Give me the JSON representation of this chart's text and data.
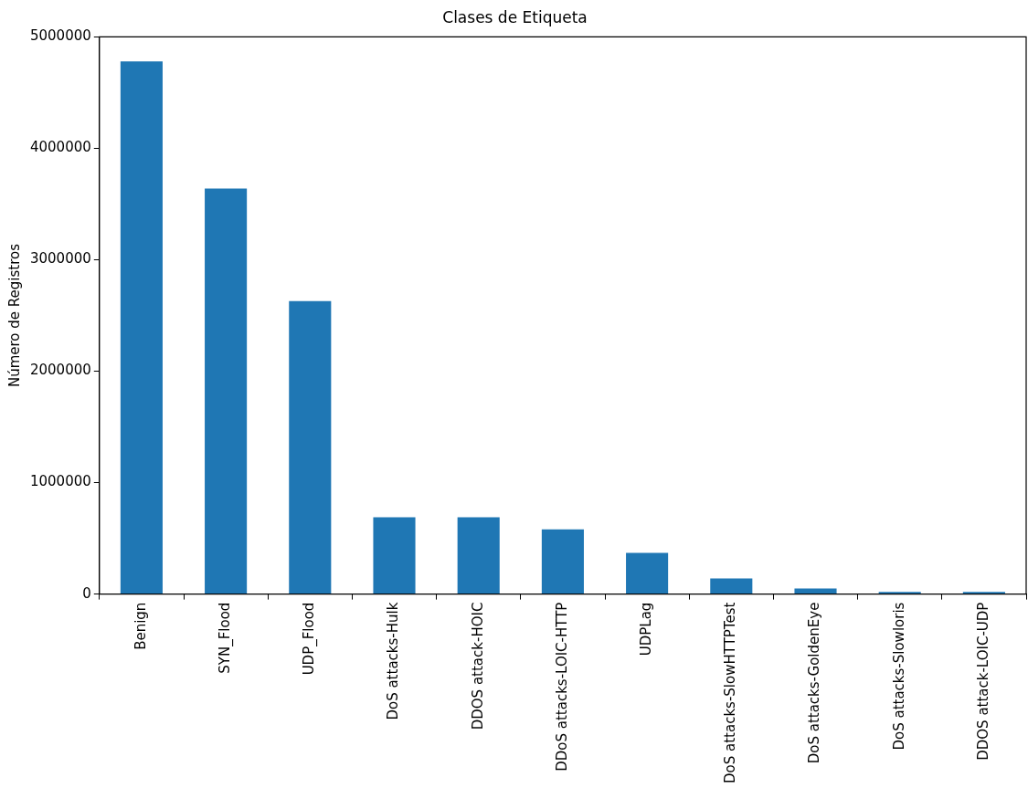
{
  "chart_data": {
    "type": "bar",
    "title": "Clases de Etiqueta",
    "ylabel": "Número de Registros",
    "categories": [
      "Benign",
      "SYN_Flood",
      "UDP_Flood",
      "DoS attacks-Hulk",
      "DDOS attack-HOIC",
      "DDoS attacks-LOIC-HTTP",
      "UDPLag",
      "DoS attacks-SlowHTTPTest",
      "DoS attacks-GoldenEye",
      "DoS attacks-Slowloris",
      "DDOS attack-LOIC-UDP"
    ],
    "values": [
      4780000,
      3640000,
      2630000,
      690000,
      690000,
      580000,
      370000,
      140000,
      50000,
      20000,
      20000
    ],
    "color": "#1f77b4",
    "ylim": [
      0,
      5000000
    ],
    "yticks": [
      0,
      1000000,
      2000000,
      3000000,
      4000000,
      5000000
    ],
    "grid": false
  }
}
